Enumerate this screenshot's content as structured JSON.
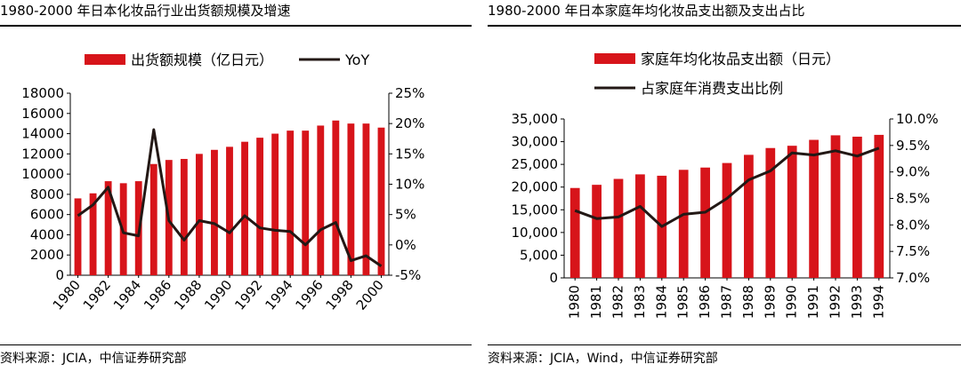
{
  "colors": {
    "bar": "#d7141a",
    "line": "#231815"
  },
  "chart_data": [
    {
      "id": "left",
      "type": "bar+line",
      "title": "1980-2000 年日本化妆品行业出货额规模及增速",
      "source": "资料来源：JCIA，中信证券研究部",
      "categories": [
        "1980",
        "1981",
        "1982",
        "1983",
        "1984",
        "1985",
        "1986",
        "1987",
        "1988",
        "1989",
        "1990",
        "1991",
        "1992",
        "1993",
        "1994",
        "1995",
        "1996",
        "1997",
        "1998",
        "1999",
        "2000"
      ],
      "x_tick_labels": [
        "1980",
        "1982",
        "1984",
        "1986",
        "1988",
        "1990",
        "1992",
        "1994",
        "1996",
        "1998",
        "2000"
      ],
      "series": [
        {
          "name": "出货额规模（亿日元）",
          "type": "bar",
          "axis": "left",
          "values": [
            7600,
            8100,
            9300,
            9100,
            9300,
            11000,
            11400,
            11500,
            12000,
            12400,
            12700,
            13200,
            13600,
            14000,
            14300,
            14300,
            14800,
            15300,
            15000,
            15000,
            14600
          ]
        },
        {
          "name": "YoY",
          "type": "line",
          "axis": "right",
          "values": [
            4.8,
            6.6,
            9.5,
            2.0,
            1.5,
            19.0,
            4.0,
            0.8,
            4.0,
            3.5,
            2.0,
            4.8,
            2.8,
            2.4,
            2.2,
            0.0,
            2.5,
            3.7,
            -2.6,
            -1.8,
            -3.5
          ]
        }
      ],
      "y_left": {
        "min": 0,
        "max": 18000,
        "ticks": [
          "0",
          "2000",
          "4000",
          "6000",
          "8000",
          "10000",
          "12000",
          "14000",
          "16000",
          "18000"
        ]
      },
      "y_right": {
        "min": -5,
        "max": 25,
        "ticks": [
          "-5%",
          "0%",
          "5%",
          "10%",
          "15%",
          "20%",
          "25%"
        ]
      }
    },
    {
      "id": "right",
      "type": "bar+line",
      "title": "1980-2000 年日本家庭年均化妆品支出额及支出占比",
      "source": "资料来源：JCIA，Wind，中信证券研究部",
      "categories": [
        "1980",
        "1981",
        "1982",
        "1983",
        "1984",
        "1985",
        "1986",
        "1987",
        "1988",
        "1989",
        "1990",
        "1991",
        "1992",
        "1993",
        "1994"
      ],
      "x_tick_labels": [
        "1980",
        "1981",
        "1982",
        "1983",
        "1984",
        "1985",
        "1986",
        "1987",
        "1988",
        "1989",
        "1990",
        "1991",
        "1992",
        "1993",
        "1994"
      ],
      "series": [
        {
          "name": "家庭年均化妆品支出额（日元）",
          "type": "bar",
          "axis": "left",
          "values": [
            19800,
            20500,
            21800,
            22800,
            22500,
            23800,
            24300,
            25300,
            27100,
            28600,
            29100,
            30400,
            31400,
            31100,
            31500
          ]
        },
        {
          "name": "占家庭年消费支出比例",
          "type": "line",
          "axis": "right",
          "values": [
            8.27,
            8.12,
            8.15,
            8.35,
            7.97,
            8.2,
            8.24,
            8.5,
            8.85,
            9.02,
            9.36,
            9.32,
            9.4,
            9.3,
            9.45
          ]
        }
      ],
      "y_left": {
        "min": 0,
        "max": 35000,
        "ticks": [
          "0",
          "5,000",
          "10,000",
          "15,000",
          "20,000",
          "25,000",
          "30,000",
          "35,000"
        ]
      },
      "y_right": {
        "min": 7.0,
        "max": 10.0,
        "ticks": [
          "7.0%",
          "7.5%",
          "8.0%",
          "8.5%",
          "9.0%",
          "9.5%",
          "10.0%"
        ]
      }
    }
  ]
}
